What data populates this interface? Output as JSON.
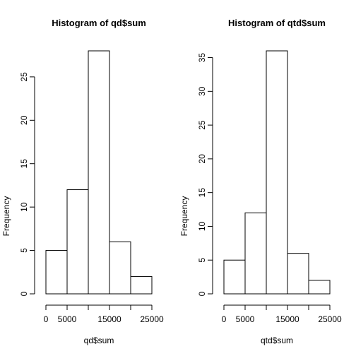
{
  "chart_data": [
    {
      "type": "bar",
      "title": "Histogram of qd$sum",
      "xlabel": "qd$sum",
      "ylabel": "Frequency",
      "bins": [
        {
          "from": 0,
          "to": 5000,
          "count": 5
        },
        {
          "from": 5000,
          "to": 10000,
          "count": 12
        },
        {
          "from": 10000,
          "to": 15000,
          "count": 28
        },
        {
          "from": 15000,
          "to": 20000,
          "count": 6
        },
        {
          "from": 20000,
          "to": 25000,
          "count": 2
        }
      ],
      "xlim": [
        0,
        25000
      ],
      "ylim": [
        0,
        28
      ],
      "x_ticks": [
        0,
        5000,
        10000,
        15000,
        20000,
        25000
      ],
      "x_tick_labels": [
        "0",
        "5000",
        "",
        "15000",
        "",
        "25000"
      ],
      "y_ticks": [
        0,
        5,
        10,
        15,
        20,
        25
      ],
      "y_tick_labels": [
        "0",
        "5",
        "10",
        "15",
        "20",
        "25"
      ],
      "grid": false,
      "legend": "none"
    },
    {
      "type": "bar",
      "title": "Histogram of qtd$sum",
      "xlabel": "qtd$sum",
      "ylabel": "Frequency",
      "bins": [
        {
          "from": 0,
          "to": 5000,
          "count": 5
        },
        {
          "from": 5000,
          "to": 10000,
          "count": 12
        },
        {
          "from": 10000,
          "to": 15000,
          "count": 36
        },
        {
          "from": 15000,
          "to": 20000,
          "count": 6
        },
        {
          "from": 20000,
          "to": 25000,
          "count": 2
        }
      ],
      "xlim": [
        0,
        25000
      ],
      "ylim": [
        0,
        36
      ],
      "x_ticks": [
        0,
        5000,
        10000,
        15000,
        20000,
        25000
      ],
      "x_tick_labels": [
        "0",
        "5000",
        "",
        "15000",
        "",
        "25000"
      ],
      "y_ticks": [
        0,
        5,
        10,
        15,
        20,
        25,
        30,
        35
      ],
      "y_tick_labels": [
        "0",
        "5",
        "10",
        "15",
        "20",
        "25",
        "30",
        "35"
      ],
      "grid": false,
      "legend": "none"
    }
  ],
  "colors": {
    "bar_fill": "#ffffff",
    "bar_stroke": "#000000",
    "background": "#ffffff"
  }
}
